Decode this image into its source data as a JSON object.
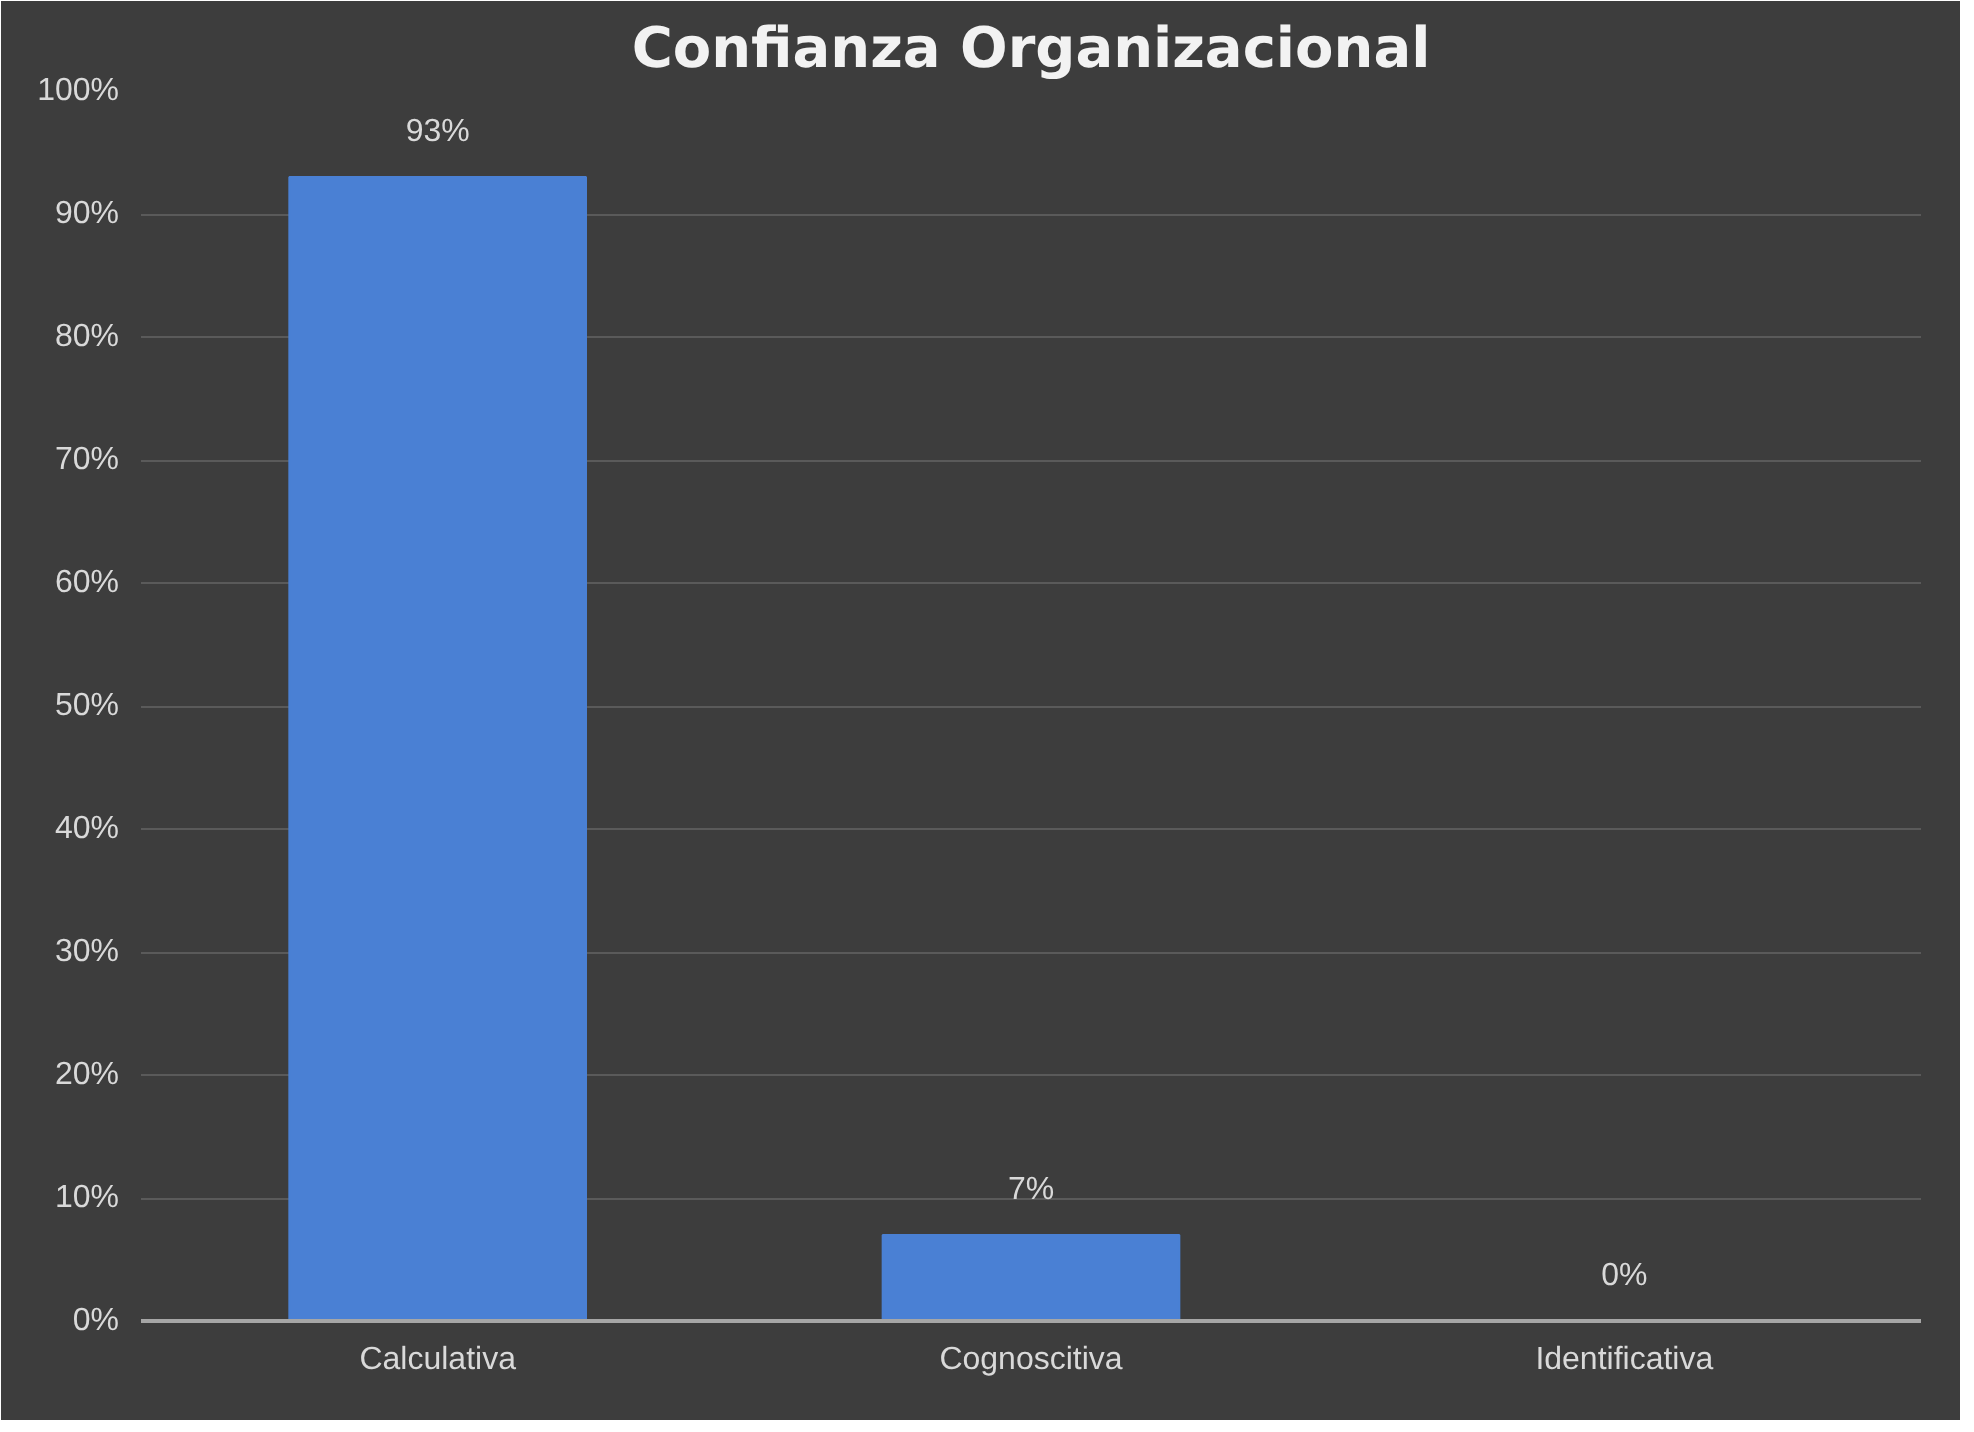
{
  "chart_data": {
    "type": "bar",
    "title": "Confianza Organizacional",
    "categories": [
      "Calculativa",
      "Cognoscitiva",
      "Identificativa"
    ],
    "values": [
      93,
      7,
      0
    ],
    "color": "#4a80d4",
    "value_labels": [
      "93%",
      "7%",
      "0%"
    ],
    "ylim": [
      0,
      100
    ],
    "yticks": [
      {
        "value": 0,
        "label": "0%"
      },
      {
        "value": 10,
        "label": "10%"
      },
      {
        "value": 20,
        "label": "20%"
      },
      {
        "value": 30,
        "label": "30%"
      },
      {
        "value": 40,
        "label": "40%"
      },
      {
        "value": 50,
        "label": "50%"
      },
      {
        "value": 60,
        "label": "60%"
      },
      {
        "value": 70,
        "label": "70%"
      },
      {
        "value": 80,
        "label": "80%"
      },
      {
        "value": 90,
        "label": "90%"
      },
      {
        "value": 100,
        "label": "100%"
      }
    ],
    "grid": "y"
  }
}
